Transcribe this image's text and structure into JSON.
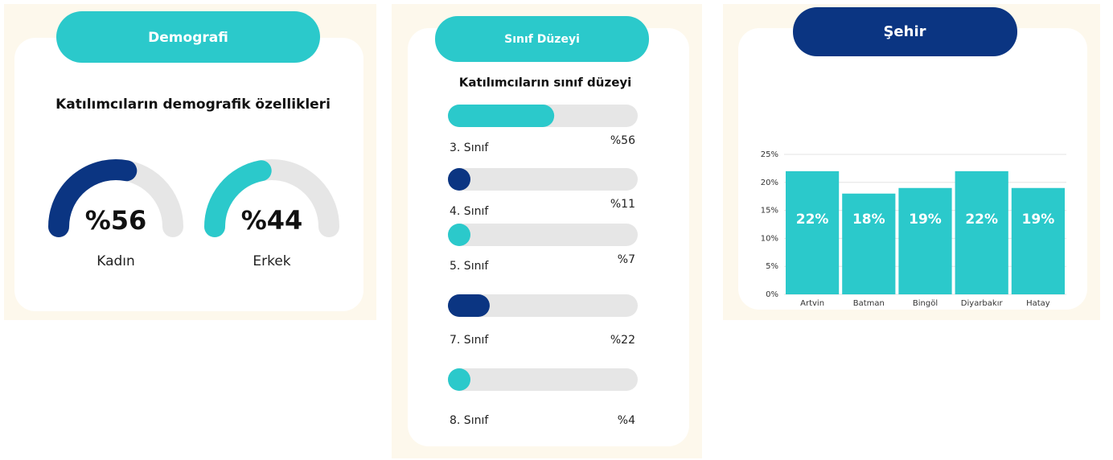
{
  "chart_data": [
    {
      "type": "gauge",
      "header": "Demografi",
      "title": "Katılımcıların demografik özellikleri",
      "categories": [
        "Kadın",
        "Erkek"
      ],
      "values": [
        56,
        44
      ],
      "value_labels": [
        "%56",
        "%44"
      ],
      "colors": [
        "#0b3582",
        "#2bc9cb"
      ],
      "ylim": [
        0,
        100
      ]
    },
    {
      "type": "progress",
      "header": "Sınıf Düzeyi",
      "title": "Katılımcıların sınıf düzeyi",
      "categories": [
        "3. Sınıf",
        "4. Sınıf",
        "5. Sınıf",
        "7. Sınıf",
        "8. Sınıf"
      ],
      "values": [
        56,
        11,
        7,
        22,
        4
      ],
      "value_labels": [
        "%56",
        "%11",
        "%7",
        "%22",
        "%4"
      ],
      "colors": [
        "#2bc9cb",
        "#0b3582",
        "#2bc9cb",
        "#0b3582",
        "#2bc9cb"
      ],
      "xlim": [
        0,
        100
      ]
    },
    {
      "type": "bar",
      "header": "Şehir",
      "categories": [
        "Artvin",
        "Batman",
        "Bingöl",
        "Diyarbakır",
        "Hatay"
      ],
      "values": [
        22,
        18,
        19,
        22,
        19
      ],
      "value_labels": [
        "22%",
        "18%",
        "19%",
        "22%",
        "19%"
      ],
      "color": "#2bc9cb",
      "ylim": [
        0,
        25
      ],
      "yticks": [
        {
          "value": 0,
          "label": "0%"
        },
        {
          "value": 5,
          "label": "5%"
        },
        {
          "value": 10,
          "label": "10%"
        },
        {
          "value": 15,
          "label": "15%"
        },
        {
          "value": 20,
          "label": "20%"
        },
        {
          "value": 25,
          "label": "25%"
        }
      ],
      "grid": true
    }
  ]
}
